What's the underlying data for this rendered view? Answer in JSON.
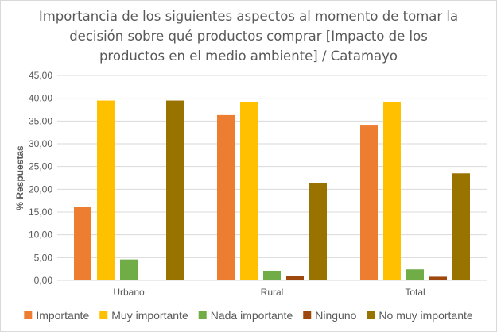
{
  "chart_data": {
    "type": "bar",
    "title_lines": [
      "Importancia de los siguientes aspectos al momento de tomar la",
      "decisión sobre qué productos comprar [Impacto de los",
      "productos en el medio ambiente] / Catamayo"
    ],
    "xlabel": "",
    "ylabel": "% Respuestas",
    "ylim": [
      0,
      45
    ],
    "yticks": [
      "0,00",
      "5,00",
      "10,00",
      "15,00",
      "20,00",
      "25,00",
      "30,00",
      "35,00",
      "40,00",
      "45,00"
    ],
    "categories": [
      "Urbano",
      "Rural",
      "Total"
    ],
    "series": [
      {
        "name": "Importante",
        "color": "#ED7D31",
        "values": [
          16.2,
          36.3,
          34.0
        ]
      },
      {
        "name": "Muy importante",
        "color": "#FFC000",
        "values": [
          39.5,
          39.1,
          39.2
        ]
      },
      {
        "name": "Nada importante",
        "color": "#70AD47",
        "values": [
          4.6,
          2.1,
          2.4
        ]
      },
      {
        "name": "Ninguno",
        "color": "#9E480E",
        "values": [
          0.0,
          0.9,
          0.8
        ]
      },
      {
        "name": "No muy importante",
        "color": "#997300",
        "values": [
          39.5,
          21.3,
          23.5
        ]
      }
    ],
    "grid": true,
    "legend_position": "bottom"
  }
}
